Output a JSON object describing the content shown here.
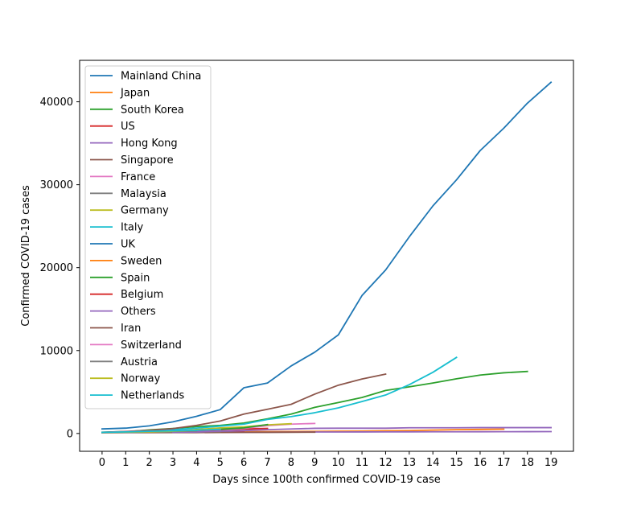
{
  "chart_data": {
    "type": "line",
    "xlabel": "Days since 100th confirmed COVID-19 case",
    "ylabel": "Confirmed COVID-19 cases",
    "xlim": [
      -0.95,
      19.95
    ],
    "ylim": [
      -2150,
      45000
    ],
    "xticks": [
      0,
      1,
      2,
      3,
      4,
      5,
      6,
      7,
      8,
      9,
      10,
      11,
      12,
      13,
      14,
      15,
      16,
      17,
      18,
      19
    ],
    "yticks": [
      0,
      10000,
      20000,
      30000,
      40000
    ],
    "grid": false,
    "legend_position": "top-left",
    "series": [
      {
        "name": "Mainland China",
        "color": "#1f77b4",
        "x": [
          0,
          1,
          2,
          3,
          4,
          5,
          6,
          7,
          8,
          9,
          10,
          11,
          12,
          13,
          14,
          15,
          16,
          17,
          18,
          19
        ],
        "values": [
          548,
          643,
          920,
          1406,
          2075,
          2877,
          5509,
          6087,
          8141,
          9802,
          11891,
          16630,
          19716,
          23707,
          27440,
          30587,
          34110,
          36814,
          39829,
          42354
        ]
      },
      {
        "name": "Japan",
        "color": "#ff7f0e",
        "x": [
          0,
          1,
          2,
          3,
          4,
          5,
          6,
          7,
          8,
          9,
          10,
          11,
          12,
          13,
          14,
          15,
          16,
          17
        ],
        "values": [
          105,
          132,
          144,
          157,
          164,
          186,
          210,
          230,
          239,
          254,
          268,
          284,
          317,
          349,
          408,
          455,
          488,
          514
        ]
      },
      {
        "name": "South Korea",
        "color": "#2ca02c",
        "x": [
          0,
          1,
          2,
          3,
          4,
          5,
          6,
          7,
          8,
          9,
          10,
          11,
          12,
          13,
          14,
          15,
          16,
          17,
          18
        ],
        "values": [
          104,
          204,
          433,
          602,
          833,
          977,
          1261,
          1766,
          2337,
          3150,
          3736,
          4335,
          5186,
          5621,
          6088,
          6593,
          7041,
          7314,
          7478
        ]
      },
      {
        "name": "US",
        "color": "#d62728",
        "x": [
          0,
          1,
          2,
          3,
          4,
          5,
          6,
          7
        ],
        "values": [
          105,
          122,
          153,
          221,
          278,
          417,
          537,
          605
        ]
      },
      {
        "name": "Hong Kong",
        "color": "#9467bd",
        "x": [
          0,
          1,
          2,
          3,
          4,
          5,
          6,
          7,
          8,
          9,
          10,
          11,
          12,
          13,
          14,
          15,
          16,
          17,
          18,
          19
        ],
        "values": [
          100,
          105,
          108,
          115,
          125,
          135,
          145,
          155,
          165,
          175,
          180,
          185,
          190,
          195,
          200,
          205,
          210,
          215,
          220,
          225
        ]
      },
      {
        "name": "Singapore",
        "color": "#8c564b",
        "x": [
          0,
          1,
          2,
          3,
          4,
          5,
          6,
          7,
          8,
          9
        ],
        "values": [
          102,
          106,
          108,
          110,
          112,
          117,
          130,
          138,
          150,
          160
        ]
      },
      {
        "name": "France",
        "color": "#e377c2",
        "x": [
          0,
          1,
          2,
          3,
          4,
          5,
          6,
          7,
          8,
          9
        ],
        "values": [
          100,
          130,
          191,
          212,
          285,
          423,
          613,
          949,
          1126,
          1209
        ]
      },
      {
        "name": "Malaysia",
        "color": "#7f7f7f",
        "x": [
          0,
          1,
          2,
          3,
          4,
          5
        ],
        "values": [
          117,
          129,
          149,
          158,
          197,
          238
        ]
      },
      {
        "name": "Germany",
        "color": "#bcbd22",
        "x": [
          0,
          1,
          2,
          3,
          4,
          5,
          6,
          7,
          8
        ],
        "values": [
          130,
          159,
          196,
          262,
          482,
          670,
          799,
          1040,
          1176
        ]
      },
      {
        "name": "Italy",
        "color": "#17becf",
        "x": [
          0,
          1,
          2,
          3,
          4,
          5,
          6,
          7,
          8,
          9,
          10,
          11,
          12,
          13,
          14,
          15
        ],
        "values": [
          155,
          229,
          322,
          453,
          655,
          888,
          1128,
          1694,
          2036,
          2502,
          3089,
          3858,
          4636,
          5883,
          7375,
          9172
        ]
      },
      {
        "name": "UK",
        "color": "#1f77b4",
        "x": [
          0,
          1,
          2,
          3,
          4,
          5
        ],
        "values": [
          115,
          163,
          206,
          273,
          321,
          373
        ]
      },
      {
        "name": "Sweden",
        "color": "#ff7f0e",
        "x": [
          0,
          1,
          2,
          3,
          4,
          5
        ],
        "values": [
          137,
          161,
          203,
          248,
          326,
          461
        ]
      },
      {
        "name": "Spain",
        "color": "#2ca02c",
        "x": [
          0,
          1,
          2,
          3,
          4,
          5,
          6,
          7
        ],
        "values": [
          120,
          165,
          222,
          259,
          400,
          500,
          673,
          1073
        ]
      },
      {
        "name": "Belgium",
        "color": "#d62728",
        "x": [
          0,
          1,
          2,
          3,
          4,
          5,
          6
        ],
        "values": [
          109,
          169,
          200,
          239,
          267,
          314,
          314
        ]
      },
      {
        "name": "Others",
        "color": "#9467bd",
        "x": [
          3,
          4,
          5,
          6,
          7,
          8,
          9,
          10,
          11,
          12,
          13,
          14,
          15,
          16,
          17,
          18,
          19
        ],
        "values": [
          135,
          175,
          285,
          355,
          454,
          542,
          621,
          634,
          634,
          634,
          691,
          691,
          691,
          705,
          705,
          705,
          705
        ]
      },
      {
        "name": "Iran",
        "color": "#8c564b",
        "x": [
          0,
          1,
          2,
          3,
          4,
          5,
          6,
          7,
          8,
          9,
          10,
          11,
          12
        ],
        "values": [
          139,
          245,
          388,
          593,
          978,
          1501,
          2336,
          2922,
          3513,
          4747,
          5823,
          6566,
          7161
        ]
      },
      {
        "name": "Switzerland",
        "color": "#e377c2",
        "x": [
          0,
          1,
          2,
          3,
          4,
          5
        ],
        "values": [
          114,
          214,
          268,
          337,
          374,
          491
        ]
      },
      {
        "name": "Austria",
        "color": "#7f7f7f",
        "x": [
          0,
          1,
          2,
          3,
          4
        ],
        "values": [
          104,
          131,
          182,
          246,
          302
        ]
      },
      {
        "name": "Norway",
        "color": "#bcbd22",
        "x": [
          0,
          1,
          2,
          3,
          4,
          5
        ],
        "values": [
          113,
          169,
          192,
          277,
          400,
          598
        ]
      },
      {
        "name": "Netherlands",
        "color": "#17becf",
        "x": [
          0,
          1,
          2,
          3,
          4,
          5
        ],
        "values": [
          128,
          188,
          265,
          321,
          382,
          503
        ]
      }
    ]
  }
}
